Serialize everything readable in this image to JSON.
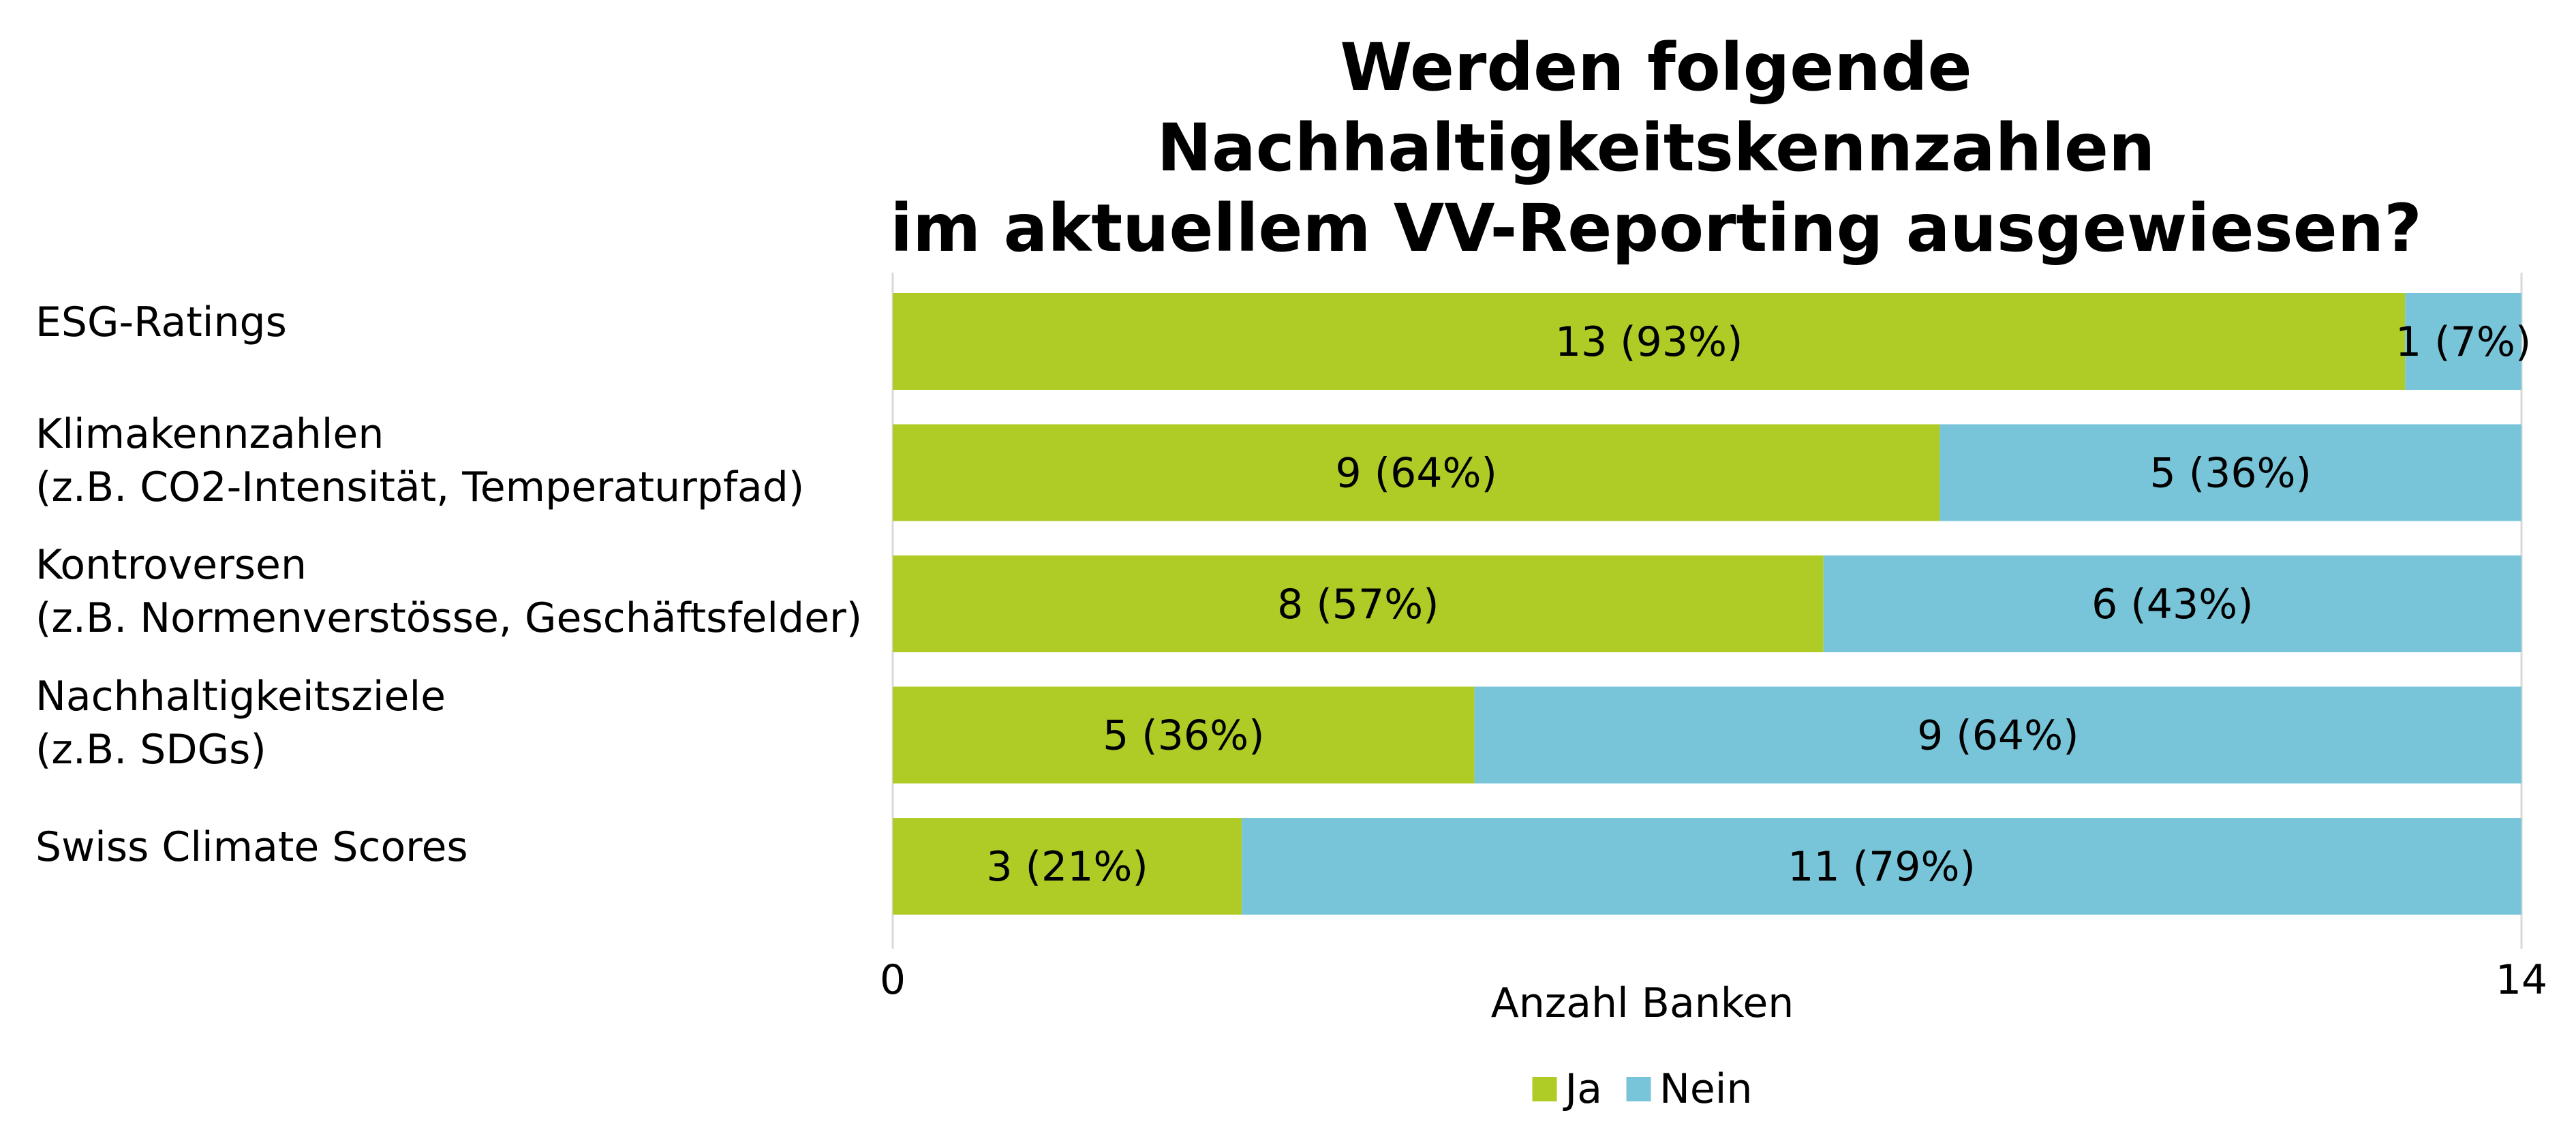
{
  "chart_data": {
    "type": "bar",
    "orientation": "horizontal",
    "stacked": true,
    "title": [
      "Werden folgende Nachhaltigkeitskennzahlen",
      "im aktuellem VV-Reporting ausgewiesen?"
    ],
    "xlabel": "Anzahl Banken",
    "ylabel": "",
    "xlim": [
      0,
      14
    ],
    "x_ticks": [
      "0",
      "14"
    ],
    "grid": false,
    "legend_position": "bottom",
    "categories": [
      [
        "ESG-Ratings"
      ],
      [
        "Klimakennzahlen",
        "(z.B. CO2-Intensität, Temperaturpfad)"
      ],
      [
        "Kontroversen",
        "(z.B. Normenverstösse, Geschäftsfelder)"
      ],
      [
        "Nachhaltigkeitsziele",
        "(z.B. SDGs)"
      ],
      [
        "Swiss Climate Scores"
      ]
    ],
    "series": [
      {
        "name": "Ja",
        "color": "#AECB26",
        "values": [
          13,
          9,
          8,
          5,
          3
        ],
        "labels": [
          "13 (93%)",
          "9 (64%)",
          "8 (57%)",
          "5 (36%)",
          "3 (21%)"
        ]
      },
      {
        "name": "Nein",
        "color": "#78C5DA",
        "values": [
          1,
          5,
          6,
          9,
          11
        ],
        "labels": [
          "1 (7%)",
          "5 (36%)",
          "6 (43%)",
          "9 (64%)",
          "11 (79%)"
        ]
      }
    ]
  }
}
